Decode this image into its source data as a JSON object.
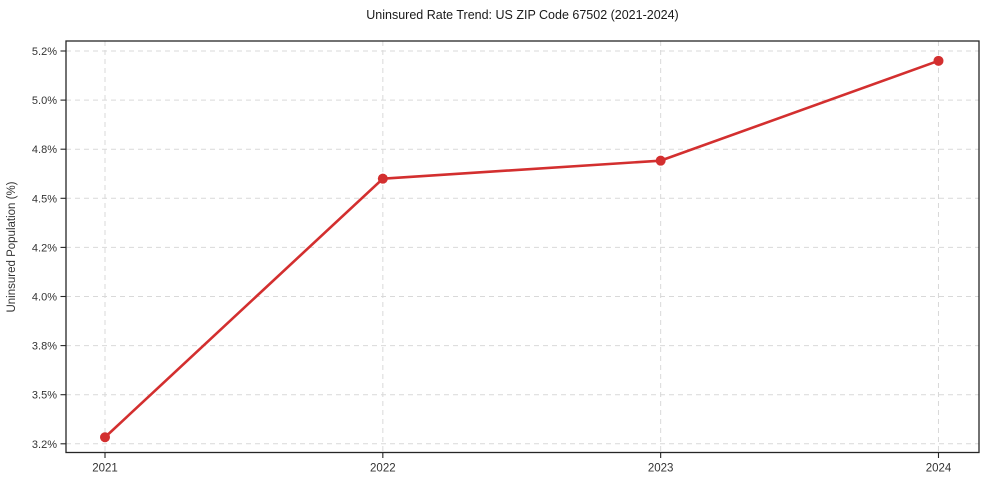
{
  "page": {
    "background": "#ffffff"
  },
  "chart_data": {
    "type": "line",
    "title": "Uninsured Rate Trend: US ZIP Code 67502 (2021-2024)",
    "xlabel": "",
    "ylabel": "Uninsured Population (%)",
    "categories": [
      "2021",
      "2022",
      "2023",
      "2024"
    ],
    "values": [
      3.24,
      4.62,
      4.73,
      5.16
    ],
    "y_tick_values": [
      3.2,
      3.5,
      3.8,
      4.0,
      4.2,
      4.5,
      4.8,
      5.0,
      5.2
    ],
    "y_tick_labels": [
      "3.2%",
      "3.5%",
      "3.8%",
      "4.0%",
      "4.2%",
      "4.5%",
      "4.8%",
      "5.0%",
      "5.2%"
    ],
    "ylim": [
      3.16,
      5.24
    ],
    "grid": true,
    "grid_style": "dashed",
    "legend": "none",
    "marker": "circle",
    "colors": {
      "line": "#d32f2f",
      "grid": "#d9d9d9",
      "spine": "#262626",
      "tick_text": "#333333",
      "title_text": "#1a1a1a"
    }
  }
}
